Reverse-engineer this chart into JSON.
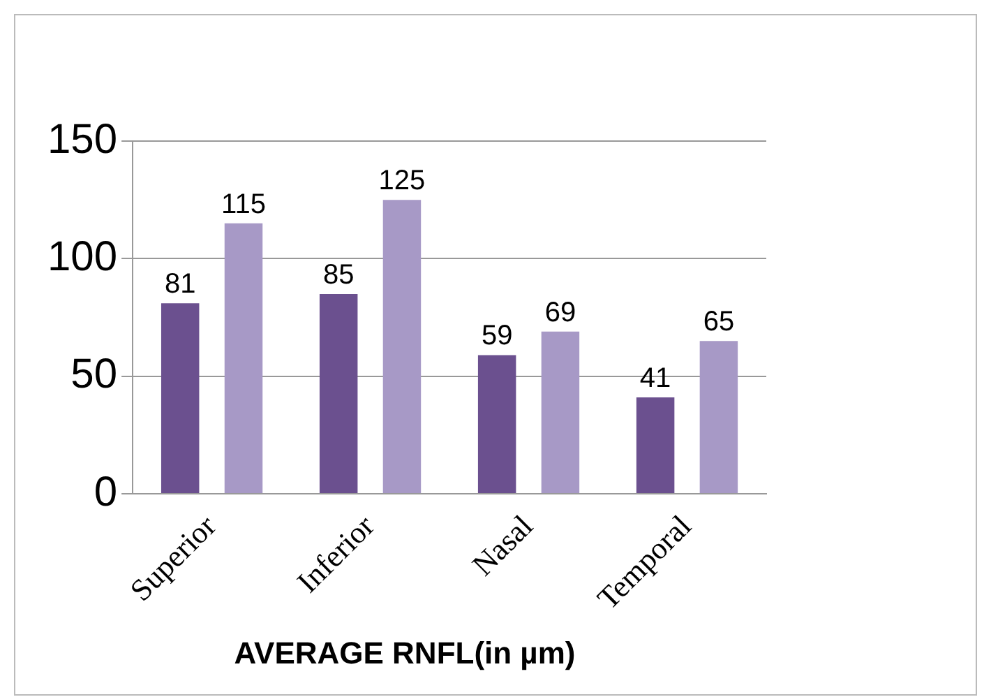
{
  "chart_data": {
    "type": "bar",
    "title": "AVERAGE RNFL(in µm)",
    "categories": [
      "Superior",
      "Inferior",
      "Nasal",
      "Temporal"
    ],
    "series": [
      {
        "color": "#6b508f",
        "values": [
          81,
          85,
          59,
          41
        ]
      },
      {
        "color": "#a799c6",
        "values": [
          115,
          125,
          69,
          65
        ]
      }
    ],
    "ylim": [
      0,
      150
    ],
    "yticks": [
      0,
      50,
      100,
      150
    ],
    "grid": "y",
    "legend": false,
    "data_labels": true
  }
}
